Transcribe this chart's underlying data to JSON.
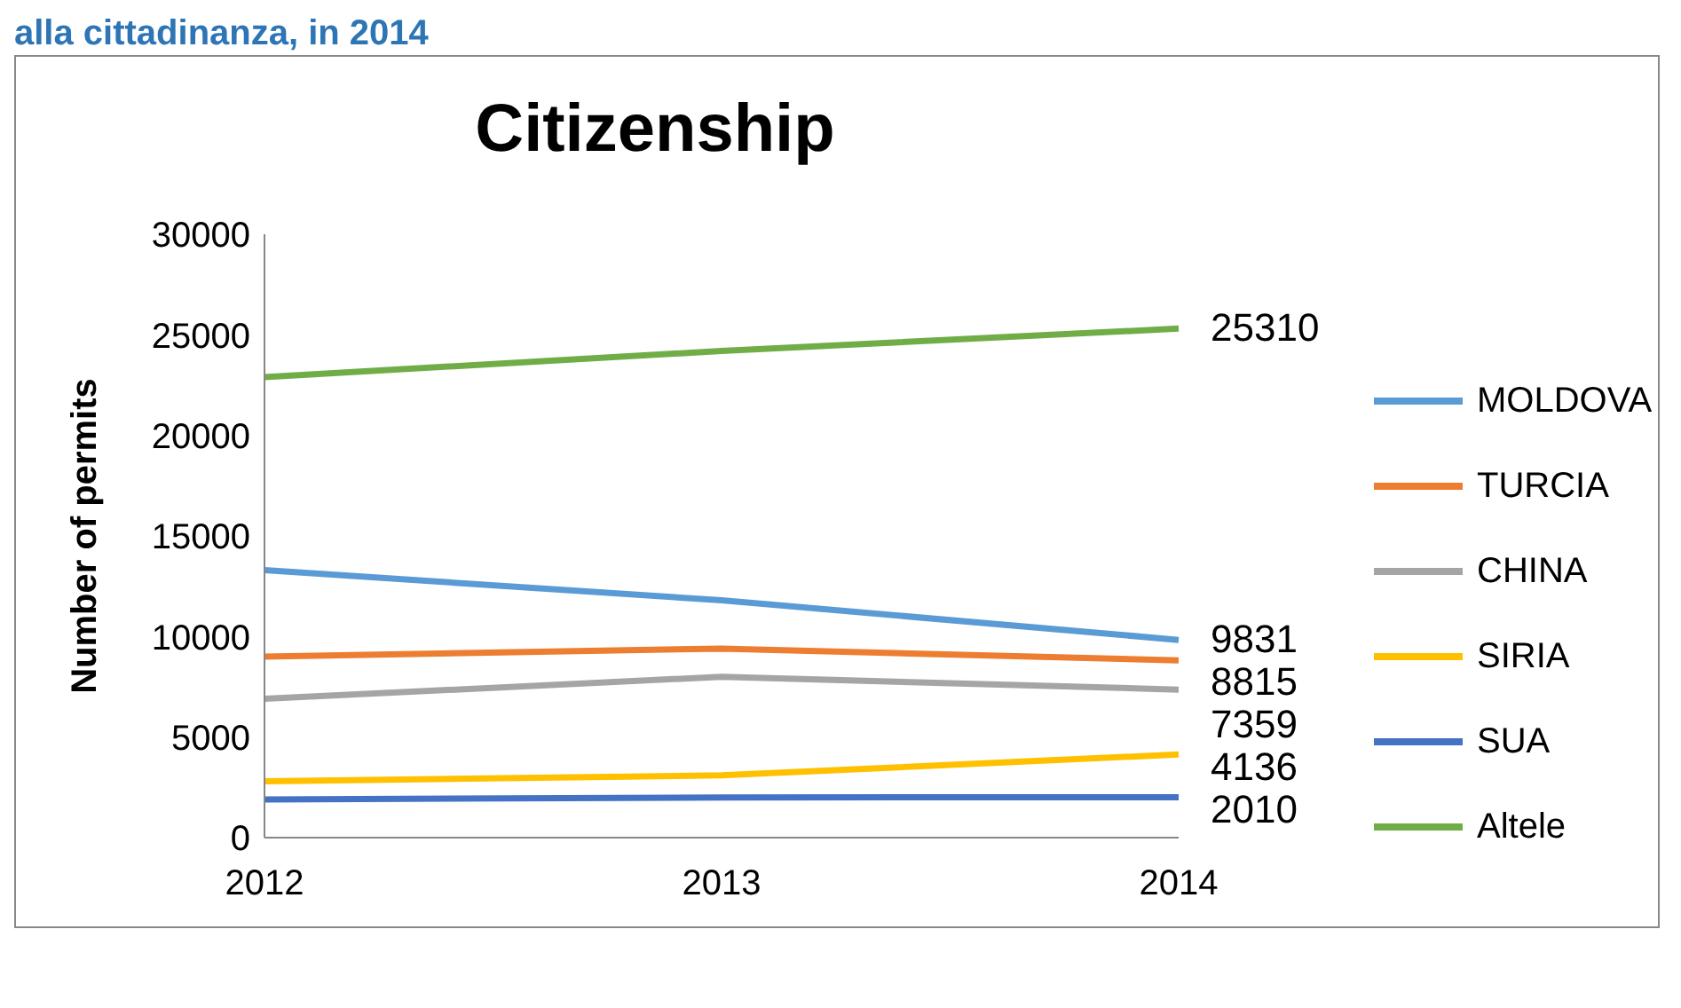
{
  "chart_data": {
    "type": "line",
    "title": "Citizenship",
    "ylabel": "Number of permits",
    "annotations": [
      "alla cittadinanza, in 2014"
    ],
    "categories": [
      "2012",
      "2013",
      "2014"
    ],
    "series": [
      {
        "name": "MOLDOVA",
        "color": "#5b9bd5",
        "values": [
          13300,
          11800,
          9831
        ],
        "value_labels": [
          null,
          null,
          "9831"
        ]
      },
      {
        "name": "TURCIA",
        "color": "#ed7d31",
        "values": [
          9000,
          9400,
          8815
        ],
        "value_labels": [
          null,
          null,
          "8815"
        ]
      },
      {
        "name": "CHINA",
        "color": "#a5a5a5",
        "values": [
          6900,
          8000,
          7359
        ],
        "value_labels": [
          null,
          null,
          "7359"
        ]
      },
      {
        "name": "SIRIA",
        "color": "#ffc000",
        "values": [
          2800,
          3100,
          4136
        ],
        "value_labels": [
          null,
          null,
          "4136"
        ]
      },
      {
        "name": "SUA",
        "color": "#4472c4",
        "values": [
          1900,
          2000,
          2010
        ],
        "value_labels": [
          null,
          null,
          "2010"
        ]
      },
      {
        "name": "Altele",
        "color": "#70ad47",
        "values": [
          22900,
          24200,
          25310
        ],
        "value_labels": [
          null,
          null,
          "25310"
        ]
      }
    ],
    "ylim": [
      0,
      30000
    ],
    "yticks": [
      0,
      5000,
      10000,
      15000,
      20000,
      25000,
      30000
    ],
    "grid": false,
    "legend": "right",
    "marker": "none",
    "line_style": "solid"
  }
}
